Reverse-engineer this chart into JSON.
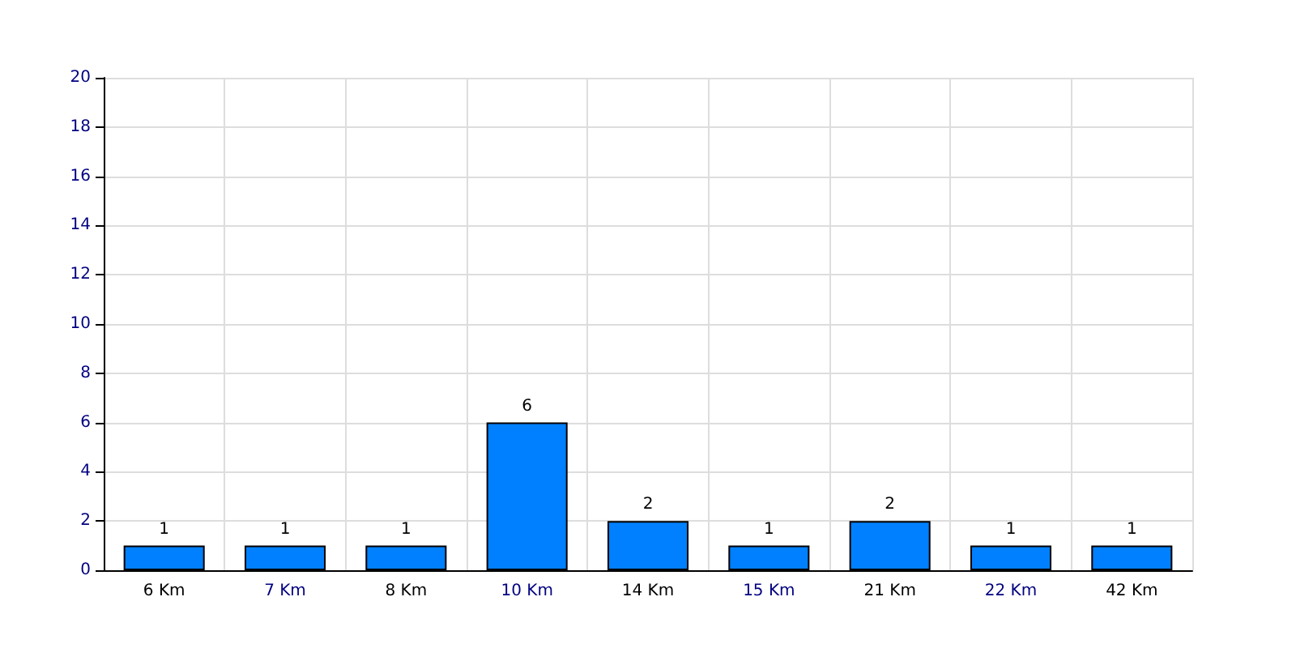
{
  "chart_data": {
    "type": "bar",
    "categories": [
      "6 Km",
      "7 Km",
      "8 Km",
      "10 Km",
      "14 Km",
      "15 Km",
      "21 Km",
      "22 Km",
      "42 Km"
    ],
    "values": [
      1,
      1,
      1,
      6,
      2,
      1,
      2,
      1,
      1
    ],
    "color": "#0080ff",
    "ylim": [
      0,
      20
    ],
    "yticks": [
      0,
      2,
      4,
      6,
      8,
      10,
      12,
      14,
      16,
      18,
      20
    ],
    "grid": true,
    "data_labels": true
  }
}
